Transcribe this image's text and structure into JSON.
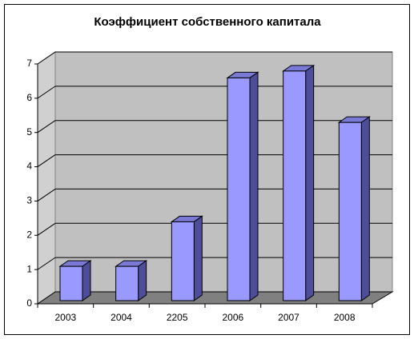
{
  "chart_data": {
    "type": "bar",
    "title": "Коэффициент собственного капитала",
    "categories": [
      "2003",
      "2004",
      "2205",
      "2006",
      "2007",
      "2008"
    ],
    "values": [
      1.0,
      1.0,
      2.3,
      6.5,
      6.7,
      5.2
    ],
    "color": "#9999ff",
    "ylim": [
      0,
      7
    ],
    "yticks": [
      0,
      1,
      2,
      3,
      4,
      5,
      6,
      7
    ],
    "grid": true
  }
}
